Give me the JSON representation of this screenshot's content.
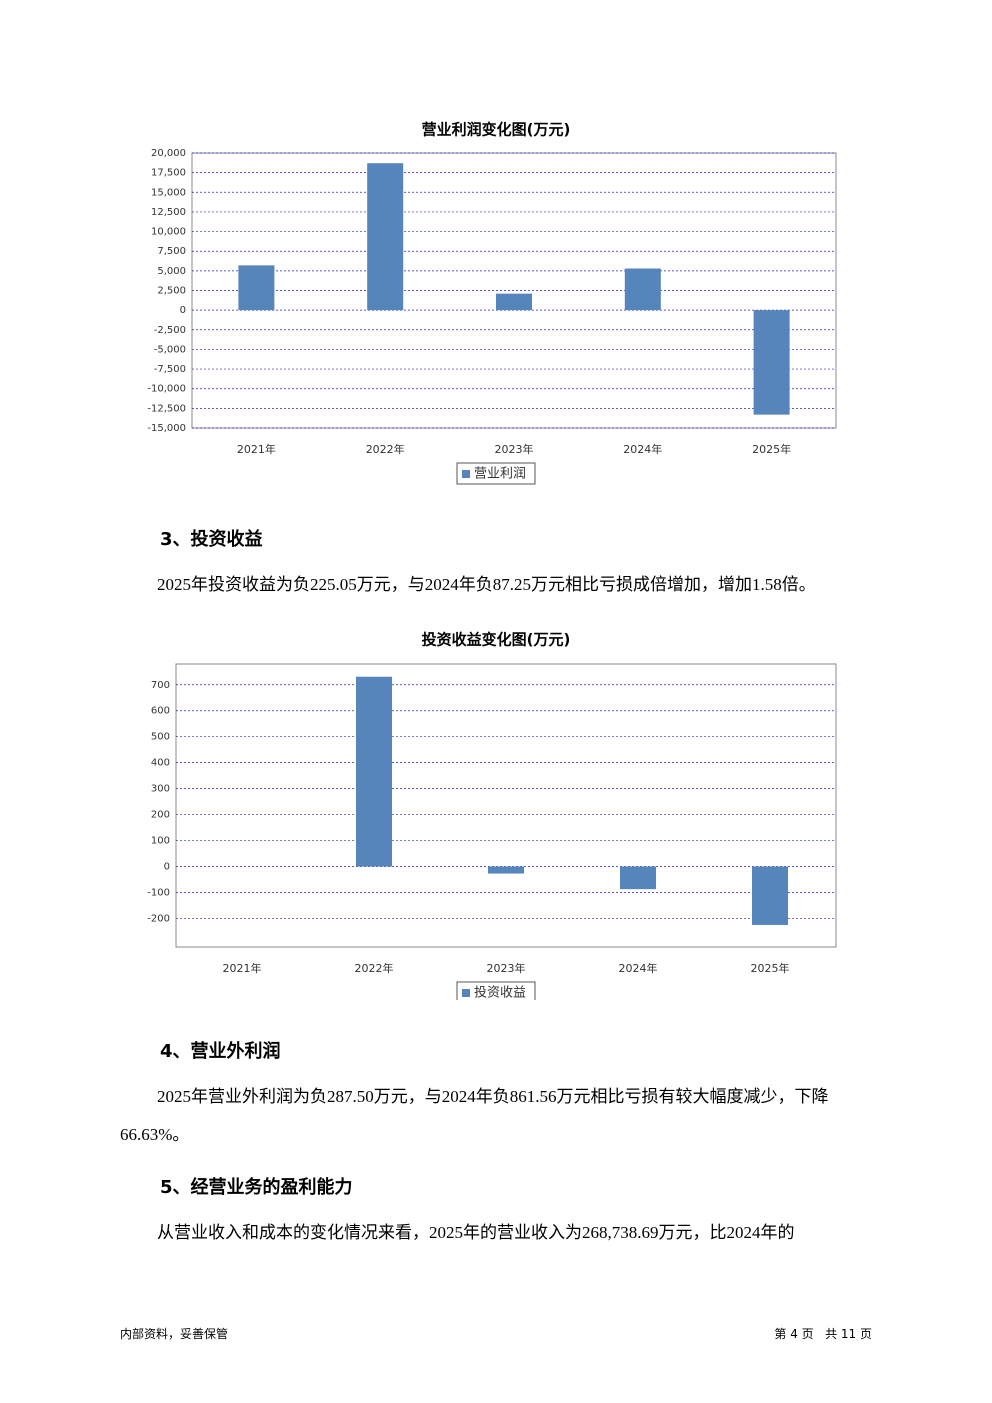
{
  "chart_data": [
    {
      "type": "bar",
      "title": "营业利润变化图(万元)",
      "categories": [
        "2021年",
        "2022年",
        "2023年",
        "2024年",
        "2025年"
      ],
      "series": [
        {
          "name": "营业利润",
          "color": "#5585bb",
          "values": [
            5700,
            18700,
            2100,
            5300,
            -13300
          ]
        }
      ],
      "ylim": [
        -15000,
        20000
      ],
      "yticks": [
        {
          "value": -15000,
          "label": "-15,000"
        },
        {
          "value": -12500,
          "label": "-12,500"
        },
        {
          "value": -10000,
          "label": "-10,000"
        },
        {
          "value": -7500,
          "label": "-7,500"
        },
        {
          "value": -5000,
          "label": "-5,000"
        },
        {
          "value": -2500,
          "label": "-2,500"
        },
        0,
        {
          "value": 2500,
          "label": "2,500"
        },
        {
          "value": 5000,
          "label": "5,000"
        },
        {
          "value": 7500,
          "label": "7,500"
        },
        {
          "value": 10000,
          "label": "10,000"
        },
        {
          "value": 12500,
          "label": "12,500"
        },
        {
          "value": 15000,
          "label": "15,000"
        },
        {
          "value": 17500,
          "label": "17,500"
        },
        {
          "value": 20000,
          "label": "20,000"
        }
      ],
      "grid": true
    },
    {
      "type": "bar",
      "title": "投资收益变化图(万元)",
      "categories": [
        "2021年",
        "2022年",
        "2023年",
        "2024年",
        "2025年"
      ],
      "series": [
        {
          "name": "投资收益",
          "color": "#5585bb",
          "values": [
            0,
            731,
            -27,
            -87.25,
            -225.05
          ]
        }
      ],
      "ylim": [
        -310,
        780
      ],
      "yticks": [
        -200,
        -100,
        0,
        100,
        200,
        300,
        400,
        500,
        600,
        700
      ],
      "grid": true
    }
  ],
  "sections": [
    {
      "heading": "3、投资收益",
      "paragraph": "2025年投资收益为负225.05万元，与2024年负87.25万元相比亏损成倍增加，增加1.58倍。"
    },
    {
      "heading": "4、营业外利润",
      "paragraph": "2025年营业外利润为负287.50万元，与2024年负861.56万元相比亏损有较大幅度减少，下降66.63%。"
    },
    {
      "heading": "5、经营业务的盈利能力",
      "paragraph": "从营业收入和成本的变化情况来看，2025年的营业收入为268,738.69万元，比2024年的"
    }
  ],
  "footer": {
    "left": "内部资料，妥善保管",
    "right": "第 4 页   共 11 页"
  }
}
